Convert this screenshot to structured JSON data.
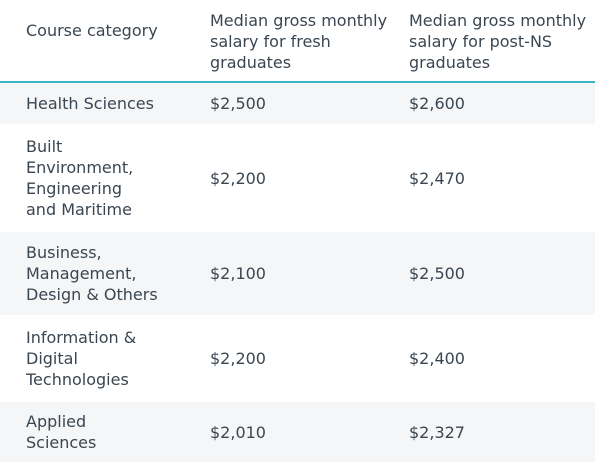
{
  "table": {
    "headers": {
      "category": "Course category",
      "fresh": "Median gross monthly salary for fresh graduates",
      "post_ns": "Median gross monthly salary for post-NS graduates"
    },
    "rows": [
      {
        "category": "Health Sciences",
        "fresh": "$2,500",
        "post_ns": "$2,600"
      },
      {
        "category": "Built Environment, Engineering and Maritime",
        "fresh": "$2,200",
        "post_ns": "$2,470"
      },
      {
        "category": "Business, Management, Design & Others",
        "fresh": "$2,100",
        "post_ns": "$2,500"
      },
      {
        "category": "Information & Digital Technologies",
        "fresh": "$2,200",
        "post_ns": "$2,400"
      },
      {
        "category": "Applied Sciences",
        "fresh": "$2,010",
        "post_ns": "$2,327"
      }
    ]
  }
}
